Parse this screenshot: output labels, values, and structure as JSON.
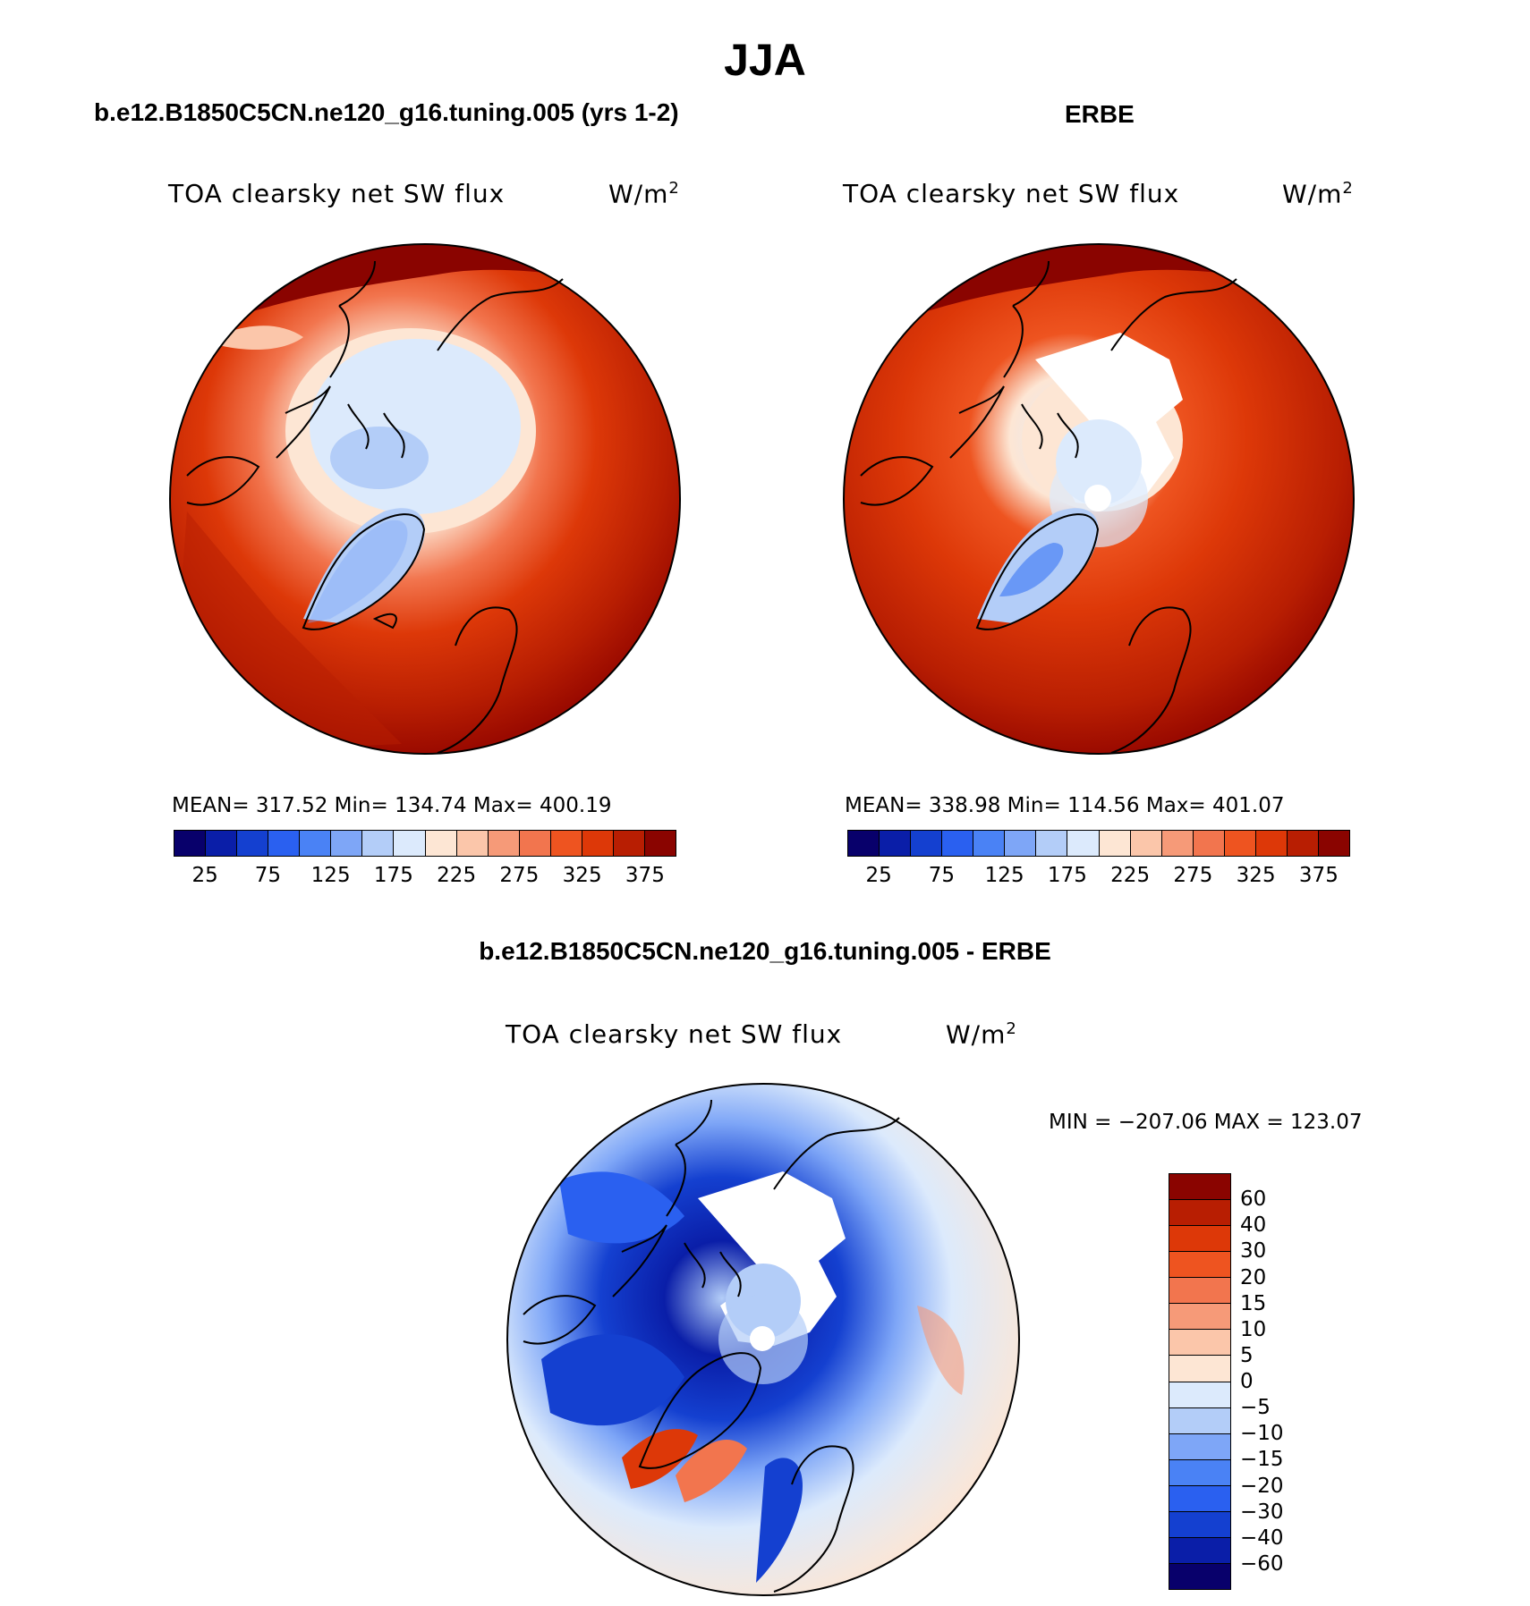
{
  "main_title": "JJA",
  "panels": [
    {
      "title": "b.e12.B1850C5CN.ne120_g16.tuning.005 (yrs 1-2)",
      "var": "TOA clearsky net SW flux",
      "units": "W/m",
      "units_sup": "2",
      "stats": "MEAN= 317.52   Min= 134.74   Max= 400.19"
    },
    {
      "title": "ERBE",
      "var": "TOA clearsky net SW flux",
      "units": "W/m",
      "units_sup": "2",
      "stats": "MEAN= 338.98   Min= 114.56   Max= 401.07"
    },
    {
      "title": "b.e12.B1850C5CN.ne120_g16.tuning.005 - ERBE",
      "var": "TOA clearsky net SW flux",
      "units": "W/m",
      "units_sup": "2",
      "stats": "MIN = −207.06 MAX = 123.07"
    }
  ],
  "abs_colorbar": {
    "colors": [
      "#08006b",
      "#0a1ea8",
      "#1440d0",
      "#2a60f0",
      "#4a82f5",
      "#7ea6f7",
      "#b3cdf8",
      "#dceafc",
      "#fde6d4",
      "#fbc6aa",
      "#f69a78",
      "#f2754e",
      "#ee5420",
      "#dd3808",
      "#b81e02",
      "#8a0400"
    ],
    "ticks": [
      "25",
      "75",
      "125",
      "175",
      "225",
      "275",
      "325",
      "375"
    ]
  },
  "diff_colorbar": {
    "colors": [
      "#8a0400",
      "#b81e02",
      "#dd3808",
      "#ee5420",
      "#f2754e",
      "#f69a78",
      "#fbc6aa",
      "#fde6d4",
      "#dceafc",
      "#b3cdf8",
      "#7ea6f7",
      "#4a82f5",
      "#2a60f0",
      "#1440d0",
      "#0a1ea8",
      "#08006b"
    ],
    "ticks": [
      "60",
      "40",
      "30",
      "20",
      "15",
      "10",
      "5",
      "0",
      "−5",
      "−10",
      "−15",
      "−20",
      "−30",
      "−40",
      "−60"
    ]
  }
}
